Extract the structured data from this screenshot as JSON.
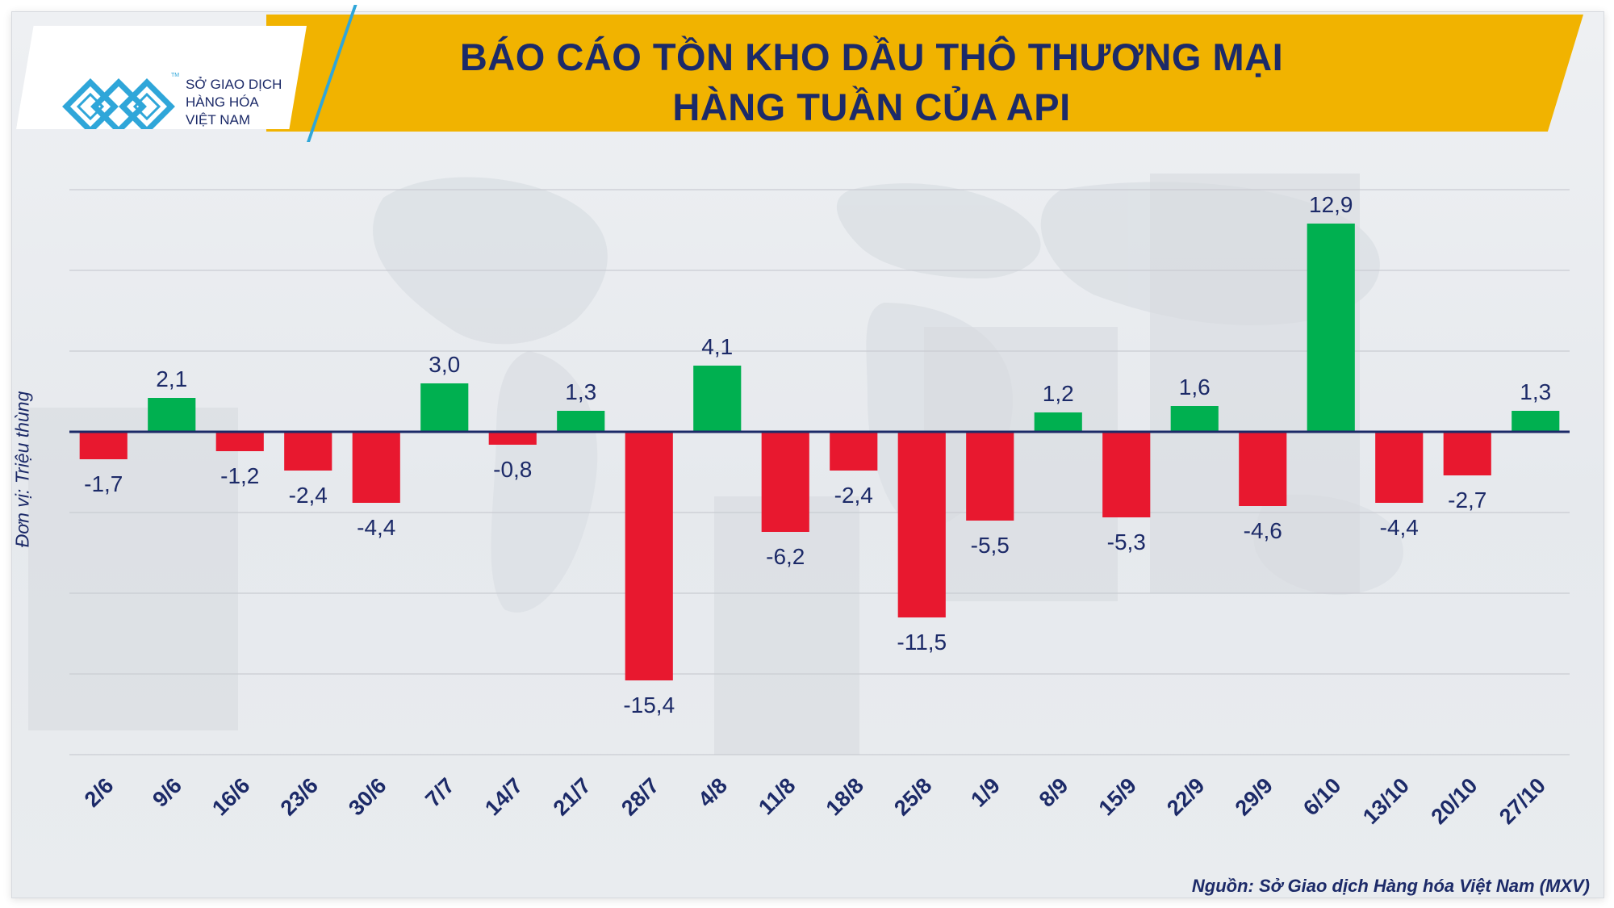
{
  "header": {
    "title_line1": "BÁO CÁO TỒN KHO DẦU THÔ THƯƠNG MẠI",
    "title_line2": "HÀNG TUẦN CỦA API"
  },
  "logo": {
    "line1": "SỞ GIAO DỊCH",
    "line2": "HÀNG HÓA",
    "line3": "VIỆT NAM",
    "tm": "TM",
    "icon": "mxv-logo-icon"
  },
  "y_unit_label": "Đơn vị: Triệu thùng",
  "source": "Nguồn: Sở Giao dịch Hàng hóa Việt Nam (MXV)",
  "colors": {
    "positive": "#00b050",
    "negative": "#e8182f",
    "axis": "#1c2a68",
    "title_band": "#f1b300",
    "text": "#1c2a68"
  },
  "chart_data": {
    "type": "bar",
    "title": "BÁO CÁO TỒN KHO DẦU THÔ THƯƠNG MẠI HÀNG TUẦN CỦA API",
    "ylabel": "Đơn vị: Triệu thùng",
    "ylim": [
      -20,
      15
    ],
    "gridlines": [
      15,
      10,
      5,
      0,
      -5,
      -10,
      -15,
      -20
    ],
    "grid": true,
    "categories": [
      "2/6",
      "9/6",
      "16/6",
      "23/6",
      "30/6",
      "7/7",
      "14/7",
      "21/7",
      "28/7",
      "4/8",
      "11/8",
      "18/8",
      "25/8",
      "1/9",
      "8/9",
      "15/9",
      "22/9",
      "29/9",
      "6/10",
      "13/10",
      "20/10",
      "27/10"
    ],
    "values": [
      -1.7,
      2.1,
      -1.2,
      -2.4,
      -4.4,
      3.0,
      -0.8,
      1.3,
      -15.4,
      4.1,
      -6.2,
      -2.4,
      -11.5,
      -5.5,
      1.2,
      -5.3,
      1.6,
      -4.6,
      12.9,
      -4.4,
      -2.7,
      1.3
    ],
    "labels": [
      "-1,7",
      "2,1",
      "-1,2",
      "-2,4",
      "-4,4",
      "3,0",
      "-0,8",
      "1,3",
      "-15,4",
      "4,1",
      "-6,2",
      "-2,4",
      "-11,5",
      "-5,5",
      "1,2",
      "-5,3",
      "1,6",
      "-4,6",
      "12,9",
      "-4,4",
      "-2,7",
      "1,3"
    ]
  }
}
